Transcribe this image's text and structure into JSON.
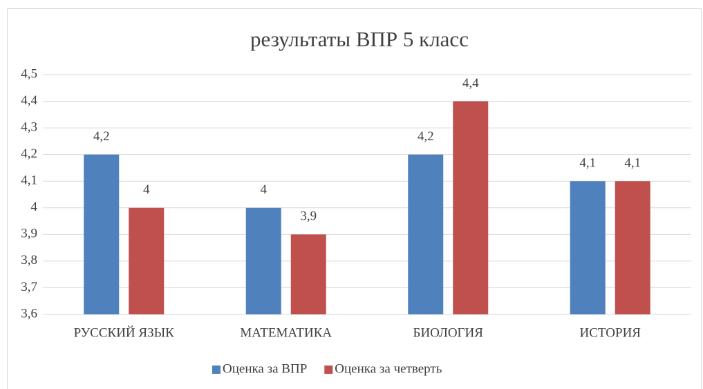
{
  "chart_data": {
    "type": "bar",
    "title": "результаты ВПР 5 класс",
    "categories": [
      "РУССКИЙ ЯЗЫК",
      "МАТЕМАТИКА",
      "БИОЛОГИЯ",
      "ИСТОРИЯ"
    ],
    "series": [
      {
        "name": "Оценка за ВПР",
        "color": "#4f81bd",
        "values": [
          4.2,
          4,
          4.2,
          4.1
        ],
        "value_labels": [
          "4,2",
          "4",
          "4,2",
          "4,1"
        ]
      },
      {
        "name": "Оценка за четверть",
        "color": "#c0504d",
        "values": [
          4,
          3.9,
          4.4,
          4.1
        ],
        "value_labels": [
          "4",
          "3,9",
          "4,4",
          "4,1"
        ]
      }
    ],
    "ylim": [
      3.6,
      4.5
    ],
    "yticks": [
      {
        "value": 3.6,
        "label": "3,6"
      },
      {
        "value": 3.7,
        "label": "3,7"
      },
      {
        "value": 3.8,
        "label": "3,8"
      },
      {
        "value": 3.9,
        "label": "3,9"
      },
      4,
      {
        "value": 4.1,
        "label": "4,1"
      },
      {
        "value": 4.2,
        "label": "4,2"
      },
      {
        "value": 4.3,
        "label": "4,3"
      },
      {
        "value": 4.4,
        "label": "4,4"
      },
      {
        "value": 4.5,
        "label": "4,5"
      }
    ],
    "grid": true,
    "legend": "bottom"
  }
}
